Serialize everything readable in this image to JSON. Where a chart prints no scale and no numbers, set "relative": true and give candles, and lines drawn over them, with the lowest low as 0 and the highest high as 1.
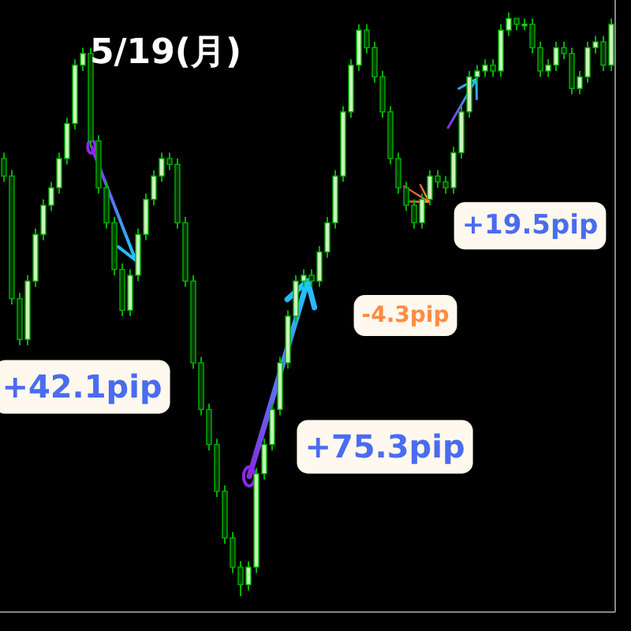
{
  "chart_data": {
    "type": "candlestick",
    "title": "5/19(月)",
    "relative": true,
    "annotations": [
      "+42.1pip",
      "+75.3pip",
      "-4.3pip",
      "+19.5pip"
    ],
    "categories": [
      null,
      null,
      null,
      null,
      null,
      null,
      null,
      null,
      null,
      null,
      null,
      null,
      null,
      null,
      null,
      null,
      null,
      null,
      null,
      null,
      null,
      null,
      null,
      null,
      null,
      null,
      null,
      null,
      null,
      null,
      null,
      null,
      null,
      null,
      null,
      null,
      null,
      null,
      null,
      null,
      null,
      null,
      null,
      null,
      null,
      null,
      null,
      null,
      null,
      null,
      null,
      null,
      null,
      null,
      null,
      null,
      null,
      null,
      null,
      null,
      null,
      null,
      null,
      null,
      null,
      null,
      null,
      null,
      null,
      null,
      null,
      null,
      null,
      null,
      null,
      null,
      null,
      null
    ],
    "ohlc": [
      [
        0.75,
        0.76,
        0.71,
        0.72
      ],
      [
        0.72,
        0.73,
        0.5,
        0.51
      ],
      [
        0.51,
        0.52,
        0.43,
        0.44
      ],
      [
        0.44,
        0.55,
        0.43,
        0.54
      ],
      [
        0.54,
        0.63,
        0.53,
        0.62
      ],
      [
        0.62,
        0.68,
        0.61,
        0.67
      ],
      [
        0.67,
        0.71,
        0.66,
        0.7
      ],
      [
        0.7,
        0.76,
        0.69,
        0.75
      ],
      [
        0.75,
        0.82,
        0.74,
        0.81
      ],
      [
        0.81,
        0.92,
        0.8,
        0.91
      ],
      [
        0.91,
        0.94,
        0.9,
        0.93
      ],
      [
        0.93,
        0.94,
        0.77,
        0.78
      ],
      [
        0.78,
        0.79,
        0.69,
        0.7
      ],
      [
        0.7,
        0.71,
        0.63,
        0.64
      ],
      [
        0.64,
        0.65,
        0.55,
        0.56
      ],
      [
        0.56,
        0.57,
        0.48,
        0.49
      ],
      [
        0.49,
        0.56,
        0.48,
        0.55
      ],
      [
        0.55,
        0.63,
        0.54,
        0.62
      ],
      [
        0.62,
        0.69,
        0.61,
        0.68
      ],
      [
        0.68,
        0.73,
        0.67,
        0.72
      ],
      [
        0.72,
        0.76,
        0.71,
        0.75
      ],
      [
        0.75,
        0.76,
        0.73,
        0.74
      ],
      [
        0.74,
        0.75,
        0.63,
        0.64
      ],
      [
        0.64,
        0.65,
        0.53,
        0.54
      ],
      [
        0.54,
        0.55,
        0.39,
        0.4
      ],
      [
        0.4,
        0.41,
        0.31,
        0.32
      ],
      [
        0.32,
        0.33,
        0.25,
        0.26
      ],
      [
        0.26,
        0.27,
        0.17,
        0.18
      ],
      [
        0.18,
        0.19,
        0.09,
        0.1
      ],
      [
        0.1,
        0.11,
        0.04,
        0.05
      ],
      [
        0.05,
        0.06,
        0.0,
        0.02
      ],
      [
        0.02,
        0.06,
        0.01,
        0.05
      ],
      [
        0.05,
        0.22,
        0.04,
        0.21
      ],
      [
        0.21,
        0.27,
        0.2,
        0.26
      ],
      [
        0.26,
        0.33,
        0.25,
        0.32
      ],
      [
        0.32,
        0.41,
        0.31,
        0.4
      ],
      [
        0.4,
        0.49,
        0.39,
        0.48
      ],
      [
        0.48,
        0.55,
        0.47,
        0.54
      ],
      [
        0.54,
        0.56,
        0.53,
        0.55
      ],
      [
        0.55,
        0.56,
        0.53,
        0.54
      ],
      [
        0.54,
        0.6,
        0.53,
        0.59
      ],
      [
        0.59,
        0.65,
        0.58,
        0.64
      ],
      [
        0.64,
        0.73,
        0.63,
        0.72
      ],
      [
        0.72,
        0.84,
        0.71,
        0.83
      ],
      [
        0.83,
        0.92,
        0.82,
        0.91
      ],
      [
        0.91,
        0.98,
        0.9,
        0.97
      ],
      [
        0.97,
        0.98,
        0.93,
        0.94
      ],
      [
        0.94,
        0.95,
        0.88,
        0.89
      ],
      [
        0.89,
        0.9,
        0.82,
        0.83
      ],
      [
        0.83,
        0.84,
        0.74,
        0.75
      ],
      [
        0.75,
        0.76,
        0.69,
        0.7
      ],
      [
        0.7,
        0.71,
        0.66,
        0.67
      ],
      [
        0.67,
        0.68,
        0.63,
        0.64
      ],
      [
        0.64,
        0.69,
        0.63,
        0.68
      ],
      [
        0.68,
        0.73,
        0.67,
        0.72
      ],
      [
        0.72,
        0.73,
        0.7,
        0.71
      ],
      [
        0.71,
        0.72,
        0.69,
        0.7
      ],
      [
        0.7,
        0.77,
        0.69,
        0.76
      ],
      [
        0.76,
        0.84,
        0.75,
        0.83
      ],
      [
        0.83,
        0.9,
        0.82,
        0.89
      ],
      [
        0.89,
        0.91,
        0.88,
        0.9
      ],
      [
        0.9,
        0.92,
        0.89,
        0.91
      ],
      [
        0.91,
        0.92,
        0.89,
        0.9
      ],
      [
        0.9,
        0.98,
        0.89,
        0.97
      ],
      [
        0.97,
        1.0,
        0.96,
        0.99
      ],
      [
        0.99,
        0.99,
        0.97,
        0.98
      ],
      [
        0.98,
        0.99,
        0.97,
        0.98
      ],
      [
        0.98,
        0.99,
        0.93,
        0.94
      ],
      [
        0.94,
        0.95,
        0.89,
        0.9
      ],
      [
        0.9,
        0.92,
        0.89,
        0.91
      ],
      [
        0.91,
        0.95,
        0.9,
        0.94
      ],
      [
        0.94,
        0.95,
        0.92,
        0.93
      ],
      [
        0.93,
        0.94,
        0.86,
        0.87
      ],
      [
        0.87,
        0.9,
        0.86,
        0.89
      ],
      [
        0.89,
        0.95,
        0.88,
        0.94
      ],
      [
        0.94,
        0.96,
        0.93,
        0.95
      ],
      [
        0.95,
        0.96,
        0.9,
        0.91
      ],
      [
        0.91,
        0.99,
        0.9,
        0.98
      ]
    ]
  }
}
